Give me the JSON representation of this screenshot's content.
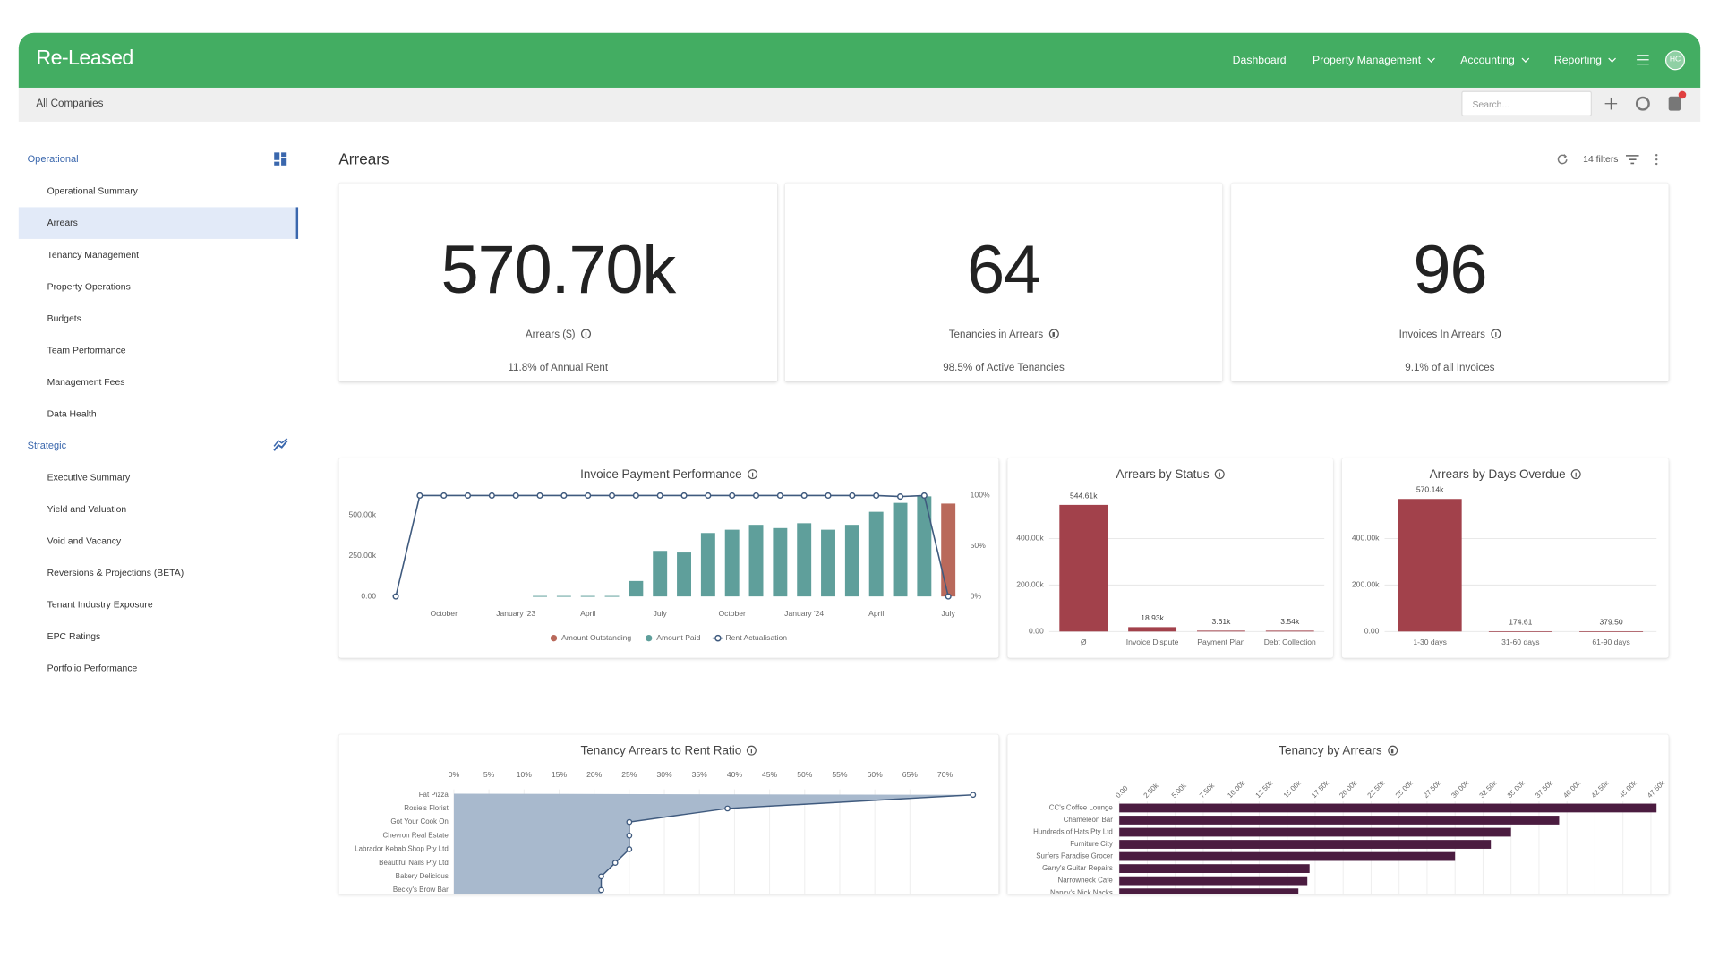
{
  "header": {
    "logo": "Re-Leased",
    "nav": [
      "Dashboard",
      "Property Management",
      "Accounting",
      "Reporting"
    ],
    "avatar": "HC"
  },
  "subheader": {
    "scope": "All Companies",
    "search_placeholder": "Search..."
  },
  "sidebar": {
    "active": "Arrears",
    "sections": [
      {
        "title": "Operational",
        "items": [
          "Operational Summary",
          "Arrears",
          "Tenancy Management",
          "Property Operations",
          "Budgets",
          "Team Performance",
          "Management Fees",
          "Data Health"
        ]
      },
      {
        "title": "Strategic",
        "items": [
          "Executive Summary",
          "Yield and Valuation",
          "Void and Vacancy",
          "Reversions & Projections (BETA)",
          "Tenant Industry Exposure",
          "EPC Ratings",
          "Portfolio Performance"
        ]
      }
    ]
  },
  "page": {
    "title": "Arrears",
    "filters": "14 filters"
  },
  "kpis": [
    {
      "value": "570.70k",
      "label": "Arrears ($)",
      "note": "11.8% of Annual Rent"
    },
    {
      "value": "64",
      "label": "Tenancies in Arrears",
      "note": "98.5% of Active Tenancies"
    },
    {
      "value": "96",
      "label": "Invoices In Arrears",
      "note": "9.1% of all Invoices"
    }
  ],
  "chart_data": [
    {
      "type": "bar-line",
      "title": "Invoice Payment Performance",
      "categories": [
        null,
        null,
        "October",
        null,
        null,
        "January '23",
        null,
        null,
        "April",
        null,
        null,
        "July",
        null,
        null,
        "October",
        null,
        null,
        "January '24",
        null,
        null,
        "April",
        null,
        null,
        "July"
      ],
      "series": [
        {
          "name": "Amount Outstanding",
          "mark": "bar",
          "color": "#b9695b",
          "values": [
            null,
            null,
            null,
            null,
            null,
            null,
            null,
            null,
            null,
            null,
            null,
            null,
            null,
            null,
            null,
            null,
            null,
            null,
            null,
            null,
            null,
            null,
            null,
            570700
          ]
        },
        {
          "name": "Amount Paid",
          "mark": "bar",
          "color": "#5f9f9b",
          "values": [
            null,
            null,
            null,
            null,
            null,
            null,
            3000,
            3000,
            3000,
            3000,
            95000,
            280000,
            270000,
            390000,
            410000,
            440000,
            420000,
            450000,
            410000,
            440000,
            520000,
            575000,
            615000,
            null
          ]
        },
        {
          "name": "Rent Actualisation",
          "mark": "line",
          "axis": "y2",
          "color": "#3f5a7e",
          "values": [
            0,
            100,
            100,
            100,
            100,
            100,
            100,
            100,
            100,
            100,
            100,
            100,
            100,
            100,
            100,
            100,
            100,
            100,
            100,
            100,
            100,
            99,
            100,
            0
          ]
        }
      ],
      "ylim": [
        0,
        620000
      ],
      "yticks": [
        {
          "value": 0,
          "label": "0.00"
        },
        {
          "value": 250000,
          "label": "250.00k"
        },
        {
          "value": 500000,
          "label": "500.00k"
        }
      ],
      "y2lim": [
        0,
        100
      ],
      "y2ticks": [
        {
          "value": 0,
          "label": "0%"
        },
        {
          "value": 50,
          "label": "50%"
        },
        {
          "value": 100,
          "label": "100%"
        }
      ],
      "grid": false,
      "legend": "bottom"
    },
    {
      "type": "bar",
      "title": "Arrears by Status",
      "categories": [
        "Ø",
        "Invoice Dispute",
        "Payment Plan",
        "Debt Collection"
      ],
      "values": [
        544610,
        18930,
        3610,
        3540
      ],
      "value_labels": [
        "544.61k",
        "18.93k",
        "3.61k",
        "3.54k"
      ],
      "color": "#a2414b",
      "ylim": [
        0,
        580000
      ],
      "yticks": [
        {
          "value": 0,
          "label": "0.00"
        },
        {
          "value": 200000,
          "label": "200.00k"
        },
        {
          "value": 400000,
          "label": "400.00k"
        }
      ],
      "grid": true
    },
    {
      "type": "bar",
      "title": "Arrears by Days Overdue",
      "categories": [
        "1-30 days",
        "31-60 days",
        "61-90 days"
      ],
      "values": [
        570140,
        174.61,
        379.5
      ],
      "value_labels": [
        "570.14k",
        "174.61",
        "379.50"
      ],
      "color": "#a2414b",
      "ylim": [
        0,
        580000
      ],
      "yticks": [
        {
          "value": 0,
          "label": "0.00"
        },
        {
          "value": 200000,
          "label": "200.00k"
        },
        {
          "value": 400000,
          "label": "400.00k"
        }
      ],
      "grid": true
    },
    {
      "type": "area",
      "orientation": "horizontal",
      "title": "Tenancy Arrears to Rent Ratio",
      "categories": [
        "Fat Pizza",
        "Rosie's Florist",
        "Got Your Cook On",
        "Chevron Real Estate",
        "Labrador Kebab Shop Pty Ltd",
        "Beautiful Nails Pty Ltd",
        "Bakery Delicious",
        "Becky's Brow Bar"
      ],
      "values": [
        74,
        39,
        25,
        25,
        25,
        23,
        21,
        21
      ],
      "color": "#a8b9cd",
      "line_color": "#3f5a7e",
      "xlim": [
        0,
        75
      ],
      "xticks": [
        {
          "value": 0,
          "label": "0%"
        },
        {
          "value": 5,
          "label": "5%"
        },
        {
          "value": 10,
          "label": "10%"
        },
        {
          "value": 15,
          "label": "15%"
        },
        {
          "value": 20,
          "label": "20%"
        },
        {
          "value": 25,
          "label": "25%"
        },
        {
          "value": 30,
          "label": "30%"
        },
        {
          "value": 35,
          "label": "35%"
        },
        {
          "value": 40,
          "label": "40%"
        },
        {
          "value": 45,
          "label": "45%"
        },
        {
          "value": 50,
          "label": "50%"
        },
        {
          "value": 55,
          "label": "55%"
        },
        {
          "value": 60,
          "label": "60%"
        },
        {
          "value": 65,
          "label": "65%"
        },
        {
          "value": 70,
          "label": "70%"
        }
      ],
      "grid": true
    },
    {
      "type": "hbar",
      "title": "Tenancy by Arrears",
      "categories": [
        "CC's Coffee Lounge",
        "Chameleon Bar",
        "Hundreds of Hats Pty Ltd",
        "Furniture City",
        "Surfers Paradise Grocer",
        "Garry's Guitar Repairs",
        "Narrowneck Cafe",
        "Nancy's Nick Nacks"
      ],
      "values": [
        48000,
        39300,
        35000,
        33200,
        30000,
        17000,
        16800,
        16000
      ],
      "color": "#4b1c40",
      "xlim": [
        0,
        48000
      ],
      "xticks": [
        {
          "value": 0,
          "label": "0.00"
        },
        {
          "value": 2500,
          "label": "2.50k"
        },
        {
          "value": 5000,
          "label": "5.00k"
        },
        {
          "value": 7500,
          "label": "7.50k"
        },
        {
          "value": 10000,
          "label": "10.00k"
        },
        {
          "value": 12500,
          "label": "12.50k"
        },
        {
          "value": 15000,
          "label": "15.00k"
        },
        {
          "value": 17500,
          "label": "17.50k"
        },
        {
          "value": 20000,
          "label": "20.00k"
        },
        {
          "value": 22500,
          "label": "22.50k"
        },
        {
          "value": 25000,
          "label": "25.00k"
        },
        {
          "value": 27500,
          "label": "27.50k"
        },
        {
          "value": 30000,
          "label": "30.00k"
        },
        {
          "value": 32500,
          "label": "32.50k"
        },
        {
          "value": 35000,
          "label": "35.00k"
        },
        {
          "value": 37500,
          "label": "37.50k"
        },
        {
          "value": 40000,
          "label": "40.00k"
        },
        {
          "value": 42500,
          "label": "42.50k"
        },
        {
          "value": 45000,
          "label": "45.00k"
        },
        {
          "value": 47500,
          "label": "47.50k"
        }
      ],
      "grid": true
    }
  ]
}
